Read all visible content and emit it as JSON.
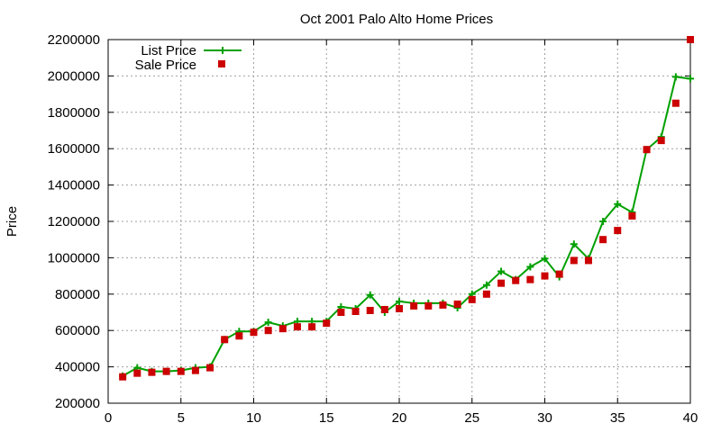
{
  "chart_data": {
    "type": "line",
    "title": "Oct 2001 Palo Alto Home Prices",
    "xlabel": "",
    "ylabel": "Price",
    "xlim": [
      0,
      40
    ],
    "ylim": [
      200000,
      2200000
    ],
    "xticks": [
      0,
      5,
      10,
      15,
      20,
      25,
      30,
      35,
      40
    ],
    "yticks": [
      200000,
      400000,
      600000,
      800000,
      1000000,
      1200000,
      1400000,
      1600000,
      1800000,
      2000000,
      2200000
    ],
    "grid": true,
    "legend_position": "top-left",
    "series": [
      {
        "name": "List Price",
        "style": "line+plus",
        "color": "#00a000",
        "x": [
          1,
          2,
          3,
          4,
          5,
          6,
          7,
          8,
          9,
          10,
          11,
          12,
          13,
          14,
          15,
          16,
          17,
          18,
          19,
          20,
          21,
          22,
          23,
          24,
          25,
          26,
          27,
          28,
          29,
          30,
          31,
          32,
          33,
          34,
          35,
          36,
          37,
          38,
          39,
          40
        ],
        "y": [
          350000,
          395000,
          375000,
          375000,
          380000,
          395000,
          400000,
          550000,
          595000,
          595000,
          645000,
          625000,
          650000,
          650000,
          650000,
          730000,
          720000,
          795000,
          700000,
          760000,
          750000,
          750000,
          750000,
          725000,
          800000,
          850000,
          925000,
          880000,
          950000,
          995000,
          895000,
          1075000,
          995000,
          1200000,
          1295000,
          1250000,
          1595000,
          1665000,
          1995000,
          1985000
        ]
      },
      {
        "name": "Sale Price",
        "style": "square",
        "color": "#cc0000",
        "x": [
          1,
          2,
          3,
          4,
          5,
          6,
          7,
          8,
          9,
          10,
          11,
          12,
          13,
          14,
          15,
          16,
          17,
          18,
          19,
          20,
          21,
          22,
          23,
          24,
          25,
          26,
          27,
          28,
          29,
          30,
          31,
          32,
          33,
          34,
          35,
          36,
          37,
          38,
          39,
          40
        ],
        "y": [
          345000,
          365000,
          370000,
          375000,
          375000,
          380000,
          395000,
          550000,
          570000,
          590000,
          600000,
          610000,
          620000,
          620000,
          640000,
          700000,
          705000,
          710000,
          715000,
          720000,
          735000,
          735000,
          740000,
          745000,
          770000,
          800000,
          860000,
          875000,
          880000,
          900000,
          910000,
          985000,
          985000,
          1100000,
          1150000,
          1230000,
          1595000,
          1645000,
          1850000,
          2200000
        ]
      }
    ]
  }
}
